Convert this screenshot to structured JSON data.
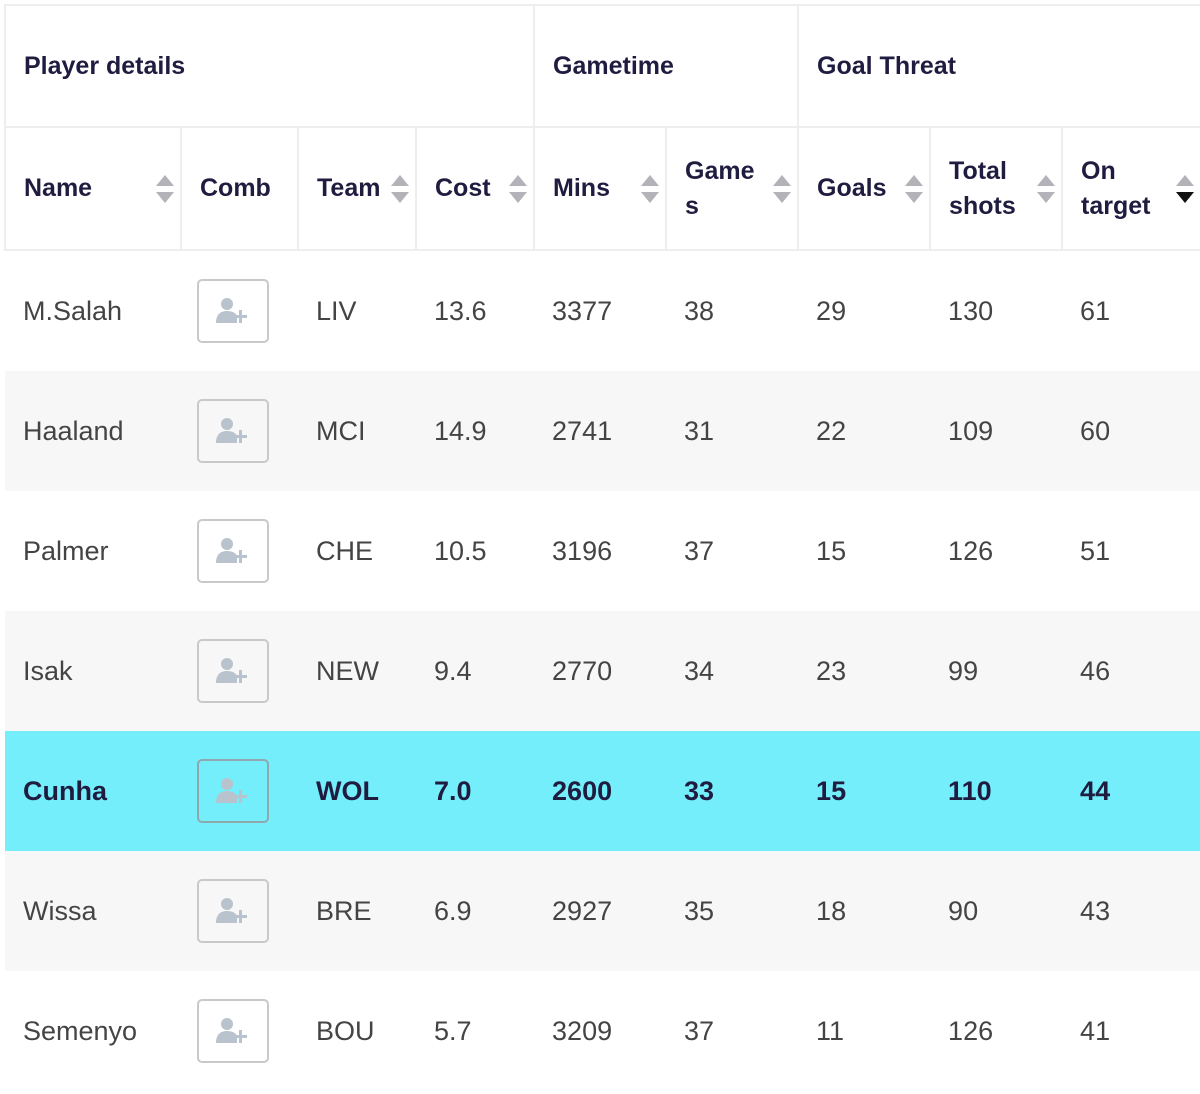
{
  "headers": {
    "groups": {
      "player_details": "Player details",
      "gametime": "Gametime",
      "goal_threat": "Goal Threat"
    },
    "columns": {
      "name": "Name",
      "comb": "Comb",
      "team": "Team",
      "cost": "Cost",
      "mins": "Mins",
      "games": "Games",
      "goals": "Goals",
      "total_shots": "Total shots",
      "on_target": "On target"
    }
  },
  "sort": {
    "column": "on_target",
    "direction": "desc"
  },
  "icons": {
    "comb_button": "add-user-icon",
    "sort": "sort-arrows-icon"
  },
  "colors": {
    "highlight_row": "#74eefa",
    "header_text": "#1f1c40",
    "cell_text": "#444444",
    "stripe": "#f7f7f7"
  },
  "rows": [
    {
      "name": "M.Salah",
      "team": "LIV",
      "cost": "13.6",
      "mins": "3377",
      "games": "38",
      "goals": "29",
      "total_shots": "130",
      "on_target": "61",
      "highlighted": false
    },
    {
      "name": "Haaland",
      "team": "MCI",
      "cost": "14.9",
      "mins": "2741",
      "games": "31",
      "goals": "22",
      "total_shots": "109",
      "on_target": "60",
      "highlighted": false
    },
    {
      "name": "Palmer",
      "team": "CHE",
      "cost": "10.5",
      "mins": "3196",
      "games": "37",
      "goals": "15",
      "total_shots": "126",
      "on_target": "51",
      "highlighted": false
    },
    {
      "name": "Isak",
      "team": "NEW",
      "cost": "9.4",
      "mins": "2770",
      "games": "34",
      "goals": "23",
      "total_shots": "99",
      "on_target": "46",
      "highlighted": false
    },
    {
      "name": "Cunha",
      "team": "WOL",
      "cost": "7.0",
      "mins": "2600",
      "games": "33",
      "goals": "15",
      "total_shots": "110",
      "on_target": "44",
      "highlighted": true
    },
    {
      "name": "Wissa",
      "team": "BRE",
      "cost": "6.9",
      "mins": "2927",
      "games": "35",
      "goals": "18",
      "total_shots": "90",
      "on_target": "43",
      "highlighted": false
    },
    {
      "name": "Semenyo",
      "team": "BOU",
      "cost": "5.7",
      "mins": "3209",
      "games": "37",
      "goals": "11",
      "total_shots": "126",
      "on_target": "41",
      "highlighted": false
    }
  ]
}
